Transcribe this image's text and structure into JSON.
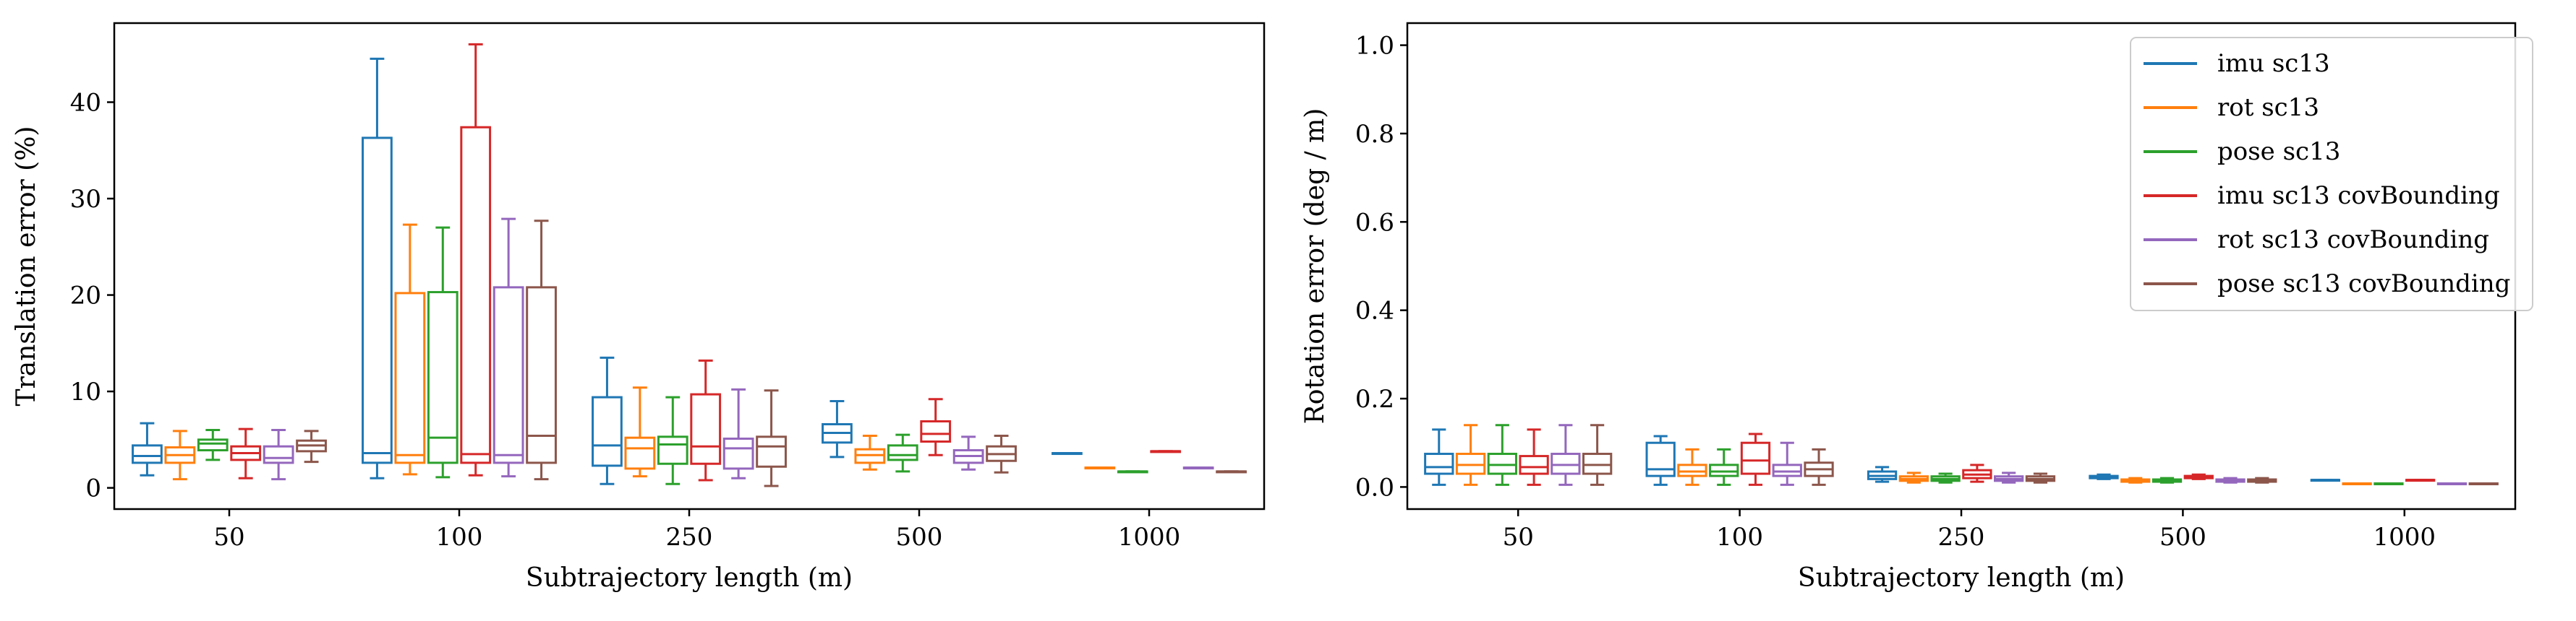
{
  "chart_data": [
    {
      "type": "box",
      "xlabel": "Subtrajectory length (m)",
      "ylabel": "Translation error (%)",
      "ylim": [
        -2.2,
        48.2
      ],
      "yticks": [
        "0",
        "10",
        "20",
        "30",
        "40"
      ],
      "categories": [
        "50",
        "100",
        "250",
        "500",
        "1000"
      ],
      "grid": false,
      "series": [
        {
          "name": "imu sc13",
          "color": "#1f77b4",
          "boxes": [
            {
              "whislo": 1.3,
              "q1": 2.6,
              "med": 3.3,
              "q3": 4.4,
              "whishi": 6.7
            },
            {
              "whislo": 1.0,
              "q1": 2.6,
              "med": 3.6,
              "q3": 36.3,
              "whishi": 44.5
            },
            {
              "whislo": 0.4,
              "q1": 2.3,
              "med": 4.4,
              "q3": 9.4,
              "whishi": 13.5
            },
            {
              "whislo": 3.2,
              "q1": 4.7,
              "med": 5.7,
              "q3": 6.6,
              "whishi": 9.0
            },
            {
              "whislo": 3.6,
              "q1": 3.6,
              "med": 3.6,
              "q3": 3.6,
              "whishi": 3.6
            }
          ]
        },
        {
          "name": "rot sc13",
          "color": "#ff7f0e",
          "boxes": [
            {
              "whislo": 0.9,
              "q1": 2.6,
              "med": 3.4,
              "q3": 4.2,
              "whishi": 5.9
            },
            {
              "whislo": 1.4,
              "q1": 2.6,
              "med": 3.4,
              "q3": 20.2,
              "whishi": 27.3
            },
            {
              "whislo": 1.2,
              "q1": 2.0,
              "med": 4.1,
              "q3": 5.2,
              "whishi": 10.4
            },
            {
              "whislo": 1.9,
              "q1": 2.6,
              "med": 3.4,
              "q3": 4.0,
              "whishi": 5.4
            },
            {
              "whislo": 2.1,
              "q1": 2.1,
              "med": 2.1,
              "q3": 2.1,
              "whishi": 2.1
            }
          ]
        },
        {
          "name": "pose sc13",
          "color": "#2ca02c",
          "boxes": [
            {
              "whislo": 2.9,
              "q1": 3.9,
              "med": 4.6,
              "q3": 5.0,
              "whishi": 6.0
            },
            {
              "whislo": 1.1,
              "q1": 2.6,
              "med": 5.2,
              "q3": 20.3,
              "whishi": 27.0
            },
            {
              "whislo": 0.4,
              "q1": 2.5,
              "med": 4.5,
              "q3": 5.3,
              "whishi": 9.4
            },
            {
              "whislo": 1.7,
              "q1": 2.9,
              "med": 3.4,
              "q3": 4.4,
              "whishi": 5.5
            },
            {
              "whislo": 1.7,
              "q1": 1.7,
              "med": 1.7,
              "q3": 1.7,
              "whishi": 1.7
            }
          ]
        },
        {
          "name": "imu sc13 covBounding",
          "color": "#d62728",
          "boxes": [
            {
              "whislo": 1.0,
              "q1": 2.9,
              "med": 3.6,
              "q3": 4.3,
              "whishi": 6.1
            },
            {
              "whislo": 1.3,
              "q1": 2.6,
              "med": 3.5,
              "q3": 37.4,
              "whishi": 46.0
            },
            {
              "whislo": 0.8,
              "q1": 2.5,
              "med": 4.3,
              "q3": 9.7,
              "whishi": 13.2
            },
            {
              "whislo": 3.4,
              "q1": 4.8,
              "med": 5.6,
              "q3": 6.9,
              "whishi": 9.2
            },
            {
              "whislo": 3.8,
              "q1": 3.8,
              "med": 3.8,
              "q3": 3.8,
              "whishi": 3.8
            }
          ]
        },
        {
          "name": "rot sc13 covBounding",
          "color": "#9467bd",
          "boxes": [
            {
              "whislo": 0.9,
              "q1": 2.6,
              "med": 3.1,
              "q3": 4.3,
              "whishi": 6.0
            },
            {
              "whislo": 1.2,
              "q1": 2.6,
              "med": 3.4,
              "q3": 20.8,
              "whishi": 27.9
            },
            {
              "whislo": 1.0,
              "q1": 2.0,
              "med": 4.1,
              "q3": 5.1,
              "whishi": 10.2
            },
            {
              "whislo": 1.9,
              "q1": 2.6,
              "med": 3.3,
              "q3": 3.9,
              "whishi": 5.3
            },
            {
              "whislo": 2.1,
              "q1": 2.1,
              "med": 2.1,
              "q3": 2.1,
              "whishi": 2.1
            }
          ]
        },
        {
          "name": "pose sc13 covBounding",
          "color": "#8c564b",
          "boxes": [
            {
              "whislo": 2.7,
              "q1": 3.8,
              "med": 4.4,
              "q3": 4.9,
              "whishi": 5.9
            },
            {
              "whislo": 0.9,
              "q1": 2.6,
              "med": 5.4,
              "q3": 20.8,
              "whishi": 27.7
            },
            {
              "whislo": 0.2,
              "q1": 2.2,
              "med": 4.3,
              "q3": 5.3,
              "whishi": 10.1
            },
            {
              "whislo": 1.6,
              "q1": 2.8,
              "med": 3.5,
              "q3": 4.3,
              "whishi": 5.4
            },
            {
              "whislo": 1.7,
              "q1": 1.7,
              "med": 1.7,
              "q3": 1.7,
              "whishi": 1.7
            }
          ]
        }
      ]
    },
    {
      "type": "box",
      "xlabel": "Subtrajectory length (m)",
      "ylabel": "Rotation error (deg / m)",
      "ylim": [
        -0.05,
        1.05
      ],
      "yticks": [
        "0.0",
        "0.2",
        "0.4",
        "0.6",
        "0.8",
        "1.0"
      ],
      "categories": [
        "50",
        "100",
        "250",
        "500",
        "1000"
      ],
      "grid": false,
      "legend": "top-right",
      "series": [
        {
          "name": "imu sc13",
          "color": "#1f77b4",
          "boxes": [
            {
              "whislo": 0.005,
              "q1": 0.03,
              "med": 0.045,
              "q3": 0.075,
              "whishi": 0.13
            },
            {
              "whislo": 0.005,
              "q1": 0.025,
              "med": 0.04,
              "q3": 0.1,
              "whishi": 0.115
            },
            {
              "whislo": 0.012,
              "q1": 0.018,
              "med": 0.025,
              "q3": 0.035,
              "whishi": 0.045
            },
            {
              "whislo": 0.018,
              "q1": 0.02,
              "med": 0.022,
              "q3": 0.025,
              "whishi": 0.028
            },
            {
              "whislo": 0.016,
              "q1": 0.016,
              "med": 0.016,
              "q3": 0.016,
              "whishi": 0.016
            }
          ]
        },
        {
          "name": "rot sc13",
          "color": "#ff7f0e",
          "boxes": [
            {
              "whislo": 0.005,
              "q1": 0.03,
              "med": 0.05,
              "q3": 0.075,
              "whishi": 0.14
            },
            {
              "whislo": 0.005,
              "q1": 0.025,
              "med": 0.035,
              "q3": 0.05,
              "whishi": 0.085
            },
            {
              "whislo": 0.01,
              "q1": 0.014,
              "med": 0.018,
              "q3": 0.024,
              "whishi": 0.032
            },
            {
              "whislo": 0.01,
              "q1": 0.012,
              "med": 0.014,
              "q3": 0.017,
              "whishi": 0.02
            },
            {
              "whislo": 0.008,
              "q1": 0.008,
              "med": 0.008,
              "q3": 0.008,
              "whishi": 0.008
            }
          ]
        },
        {
          "name": "pose sc13",
          "color": "#2ca02c",
          "boxes": [
            {
              "whislo": 0.005,
              "q1": 0.03,
              "med": 0.05,
              "q3": 0.075,
              "whishi": 0.14
            },
            {
              "whislo": 0.005,
              "q1": 0.025,
              "med": 0.035,
              "q3": 0.05,
              "whishi": 0.085
            },
            {
              "whislo": 0.01,
              "q1": 0.014,
              "med": 0.018,
              "q3": 0.024,
              "whishi": 0.03
            },
            {
              "whislo": 0.01,
              "q1": 0.012,
              "med": 0.014,
              "q3": 0.017,
              "whishi": 0.02
            },
            {
              "whislo": 0.008,
              "q1": 0.008,
              "med": 0.008,
              "q3": 0.008,
              "whishi": 0.008
            }
          ]
        },
        {
          "name": "imu sc13 covBounding",
          "color": "#d62728",
          "boxes": [
            {
              "whislo": 0.005,
              "q1": 0.03,
              "med": 0.045,
              "q3": 0.07,
              "whishi": 0.13
            },
            {
              "whislo": 0.005,
              "q1": 0.03,
              "med": 0.06,
              "q3": 0.1,
              "whishi": 0.12
            },
            {
              "whislo": 0.012,
              "q1": 0.02,
              "med": 0.028,
              "q3": 0.038,
              "whishi": 0.05
            },
            {
              "whislo": 0.018,
              "q1": 0.02,
              "med": 0.022,
              "q3": 0.025,
              "whishi": 0.028
            },
            {
              "whislo": 0.016,
              "q1": 0.016,
              "med": 0.016,
              "q3": 0.016,
              "whishi": 0.016
            }
          ]
        },
        {
          "name": "rot sc13 covBounding",
          "color": "#9467bd",
          "boxes": [
            {
              "whislo": 0.005,
              "q1": 0.03,
              "med": 0.05,
              "q3": 0.075,
              "whishi": 0.14
            },
            {
              "whislo": 0.005,
              "q1": 0.025,
              "med": 0.035,
              "q3": 0.05,
              "whishi": 0.1
            },
            {
              "whislo": 0.01,
              "q1": 0.014,
              "med": 0.018,
              "q3": 0.024,
              "whishi": 0.032
            },
            {
              "whislo": 0.01,
              "q1": 0.012,
              "med": 0.014,
              "q3": 0.017,
              "whishi": 0.02
            },
            {
              "whislo": 0.008,
              "q1": 0.008,
              "med": 0.008,
              "q3": 0.008,
              "whishi": 0.008
            }
          ]
        },
        {
          "name": "pose sc13 covBounding",
          "color": "#8c564b",
          "boxes": [
            {
              "whislo": 0.005,
              "q1": 0.03,
              "med": 0.05,
              "q3": 0.075,
              "whishi": 0.14
            },
            {
              "whislo": 0.005,
              "q1": 0.025,
              "med": 0.04,
              "q3": 0.055,
              "whishi": 0.085
            },
            {
              "whislo": 0.01,
              "q1": 0.014,
              "med": 0.018,
              "q3": 0.024,
              "whishi": 0.03
            },
            {
              "whislo": 0.01,
              "q1": 0.012,
              "med": 0.014,
              "q3": 0.017,
              "whishi": 0.02
            },
            {
              "whislo": 0.008,
              "q1": 0.008,
              "med": 0.008,
              "q3": 0.008,
              "whishi": 0.008
            }
          ]
        }
      ]
    }
  ]
}
